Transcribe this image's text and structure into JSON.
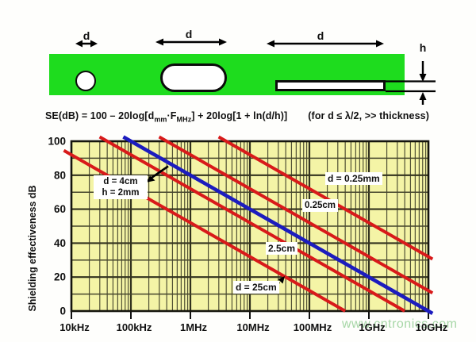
{
  "diagram": {
    "dim_label_hole": "d",
    "dim_label_stadium": "d",
    "dim_label_slot": "d",
    "thickness_label": "h"
  },
  "formula": {
    "main_1": "SE(dB) = 100 – 20log[d",
    "sub_1": "mm",
    "main_2": "·F",
    "sub_2": "MHz",
    "main_3": "] + 20log[1 + ln(d/h)]",
    "note": "(for d ≤ λ/2, >> thickness)"
  },
  "colors": {
    "shield_green": "#1edc1e",
    "chart_bg": "#f4f4a6",
    "red_line": "#d81a1a",
    "blue_line": "#1c1cbe"
  },
  "chart_data": {
    "type": "line",
    "x_scale": "log",
    "xlabel": "",
    "ylabel": "Shielding effectiveness dB",
    "ylim": [
      0,
      100
    ],
    "grid": "on",
    "x_ticks": [
      {
        "f_mhz": 0.01,
        "label": "10kHz"
      },
      {
        "f_mhz": 0.1,
        "label": "100kHz"
      },
      {
        "f_mhz": 1,
        "label": "1MHz"
      },
      {
        "f_mhz": 10,
        "label": "10MHz"
      },
      {
        "f_mhz": 100,
        "label": "100MHz"
      },
      {
        "f_mhz": 1000,
        "label": "1GHz"
      },
      {
        "f_mhz": 10000,
        "label": "10GHz"
      }
    ],
    "y_ticks": [
      0,
      20,
      40,
      60,
      80,
      100
    ],
    "series": [
      {
        "id": "d-025mm",
        "label": "d = 0.25mm",
        "color": "#d81a1a",
        "points": [
          {
            "f_mhz": 4,
            "se": 100
          },
          {
            "f_mhz": 10000,
            "se": 32
          }
        ]
      },
      {
        "id": "d-025cm",
        "label": "0.25cm",
        "color": "#d81a1a",
        "points": [
          {
            "f_mhz": 0.4,
            "se": 100
          },
          {
            "f_mhz": 10000,
            "se": 12
          }
        ]
      },
      {
        "id": "d-25cm-mid",
        "label": "2.5cm",
        "color": "#d81a1a",
        "points": [
          {
            "f_mhz": 0.04,
            "se": 100
          },
          {
            "f_mhz": 4000,
            "se": 0
          }
        ]
      },
      {
        "id": "d-25cm",
        "label": "d = 25cm",
        "color": "#d81a1a",
        "points": [
          {
            "f_mhz": 0.01,
            "se": 92
          },
          {
            "f_mhz": 400,
            "se": 0
          }
        ]
      },
      {
        "id": "d-4cm-h-2mm",
        "label": "d = 4cm, h = 2mm",
        "color": "#1c1cbe",
        "points": [
          {
            "f_mhz": 0.1,
            "se": 100
          },
          {
            "f_mhz": 10000,
            "se": 0
          }
        ]
      }
    ],
    "annotations": {
      "blue_line_1": "d = 4cm",
      "blue_line_2": "h = 2mm",
      "line_025mm": "d = 0.25mm",
      "line_025cm": "0.25cm",
      "line_25cm_mid": "2.5cm",
      "line_25cm": "d = 25cm"
    }
  },
  "watermark": {
    "text": "www.cntronics.com"
  }
}
